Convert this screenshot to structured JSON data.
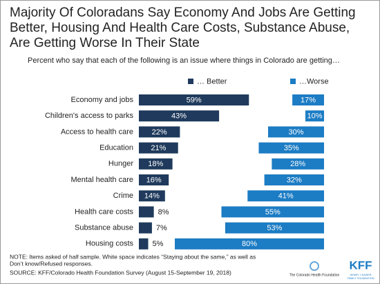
{
  "chart_data": {
    "type": "diverging_bar",
    "title": [
      "Majority Of Coloradans Say Economy And Jobs Are Getting",
      "Better, Housing And Health Care Costs, Substance Abuse,",
      "Are Getting Worse In Their State"
    ],
    "subtitle": "Percent who say that each of the following is an issue where things in Colorado are getting…",
    "categories": [
      "Economy and jobs",
      "Children's access to parks",
      "Access to health care",
      "Education",
      "Hunger",
      "Mental health care",
      "Crime",
      "Health care costs",
      "Substance abuse",
      "Housing costs"
    ],
    "series": [
      {
        "name": "… Better",
        "color": "#1f3a5c",
        "values": [
          59,
          43,
          22,
          21,
          18,
          16,
          14,
          8,
          7,
          5
        ],
        "value_labels": [
          "59%",
          "43%",
          "22%",
          "21%",
          "18%",
          "16%",
          "14%",
          "8%",
          "7%",
          "5%"
        ]
      },
      {
        "name": "…Worse",
        "color": "#1c7cc4",
        "values": [
          17,
          10,
          30,
          35,
          28,
          32,
          41,
          55,
          53,
          80
        ],
        "value_labels": [
          "17%",
          "10%",
          "30%",
          "35%",
          "28%",
          "32%",
          "41%",
          "55%",
          "53%",
          "80%"
        ]
      }
    ],
    "notes": [
      "NOTE: Items asked of half sample. White space indicates “Staying about the same,” as well as",
      "Don’t know/Refused responses.",
      "SOURCE: KFF/Colorado Health Foundation Survey (August 15-September 19, 2018)"
    ],
    "logos": [
      "The Colorado Health Foundation",
      "KFF",
      "HENRY J KAISER",
      "FAMILY FOUNDATION"
    ]
  }
}
